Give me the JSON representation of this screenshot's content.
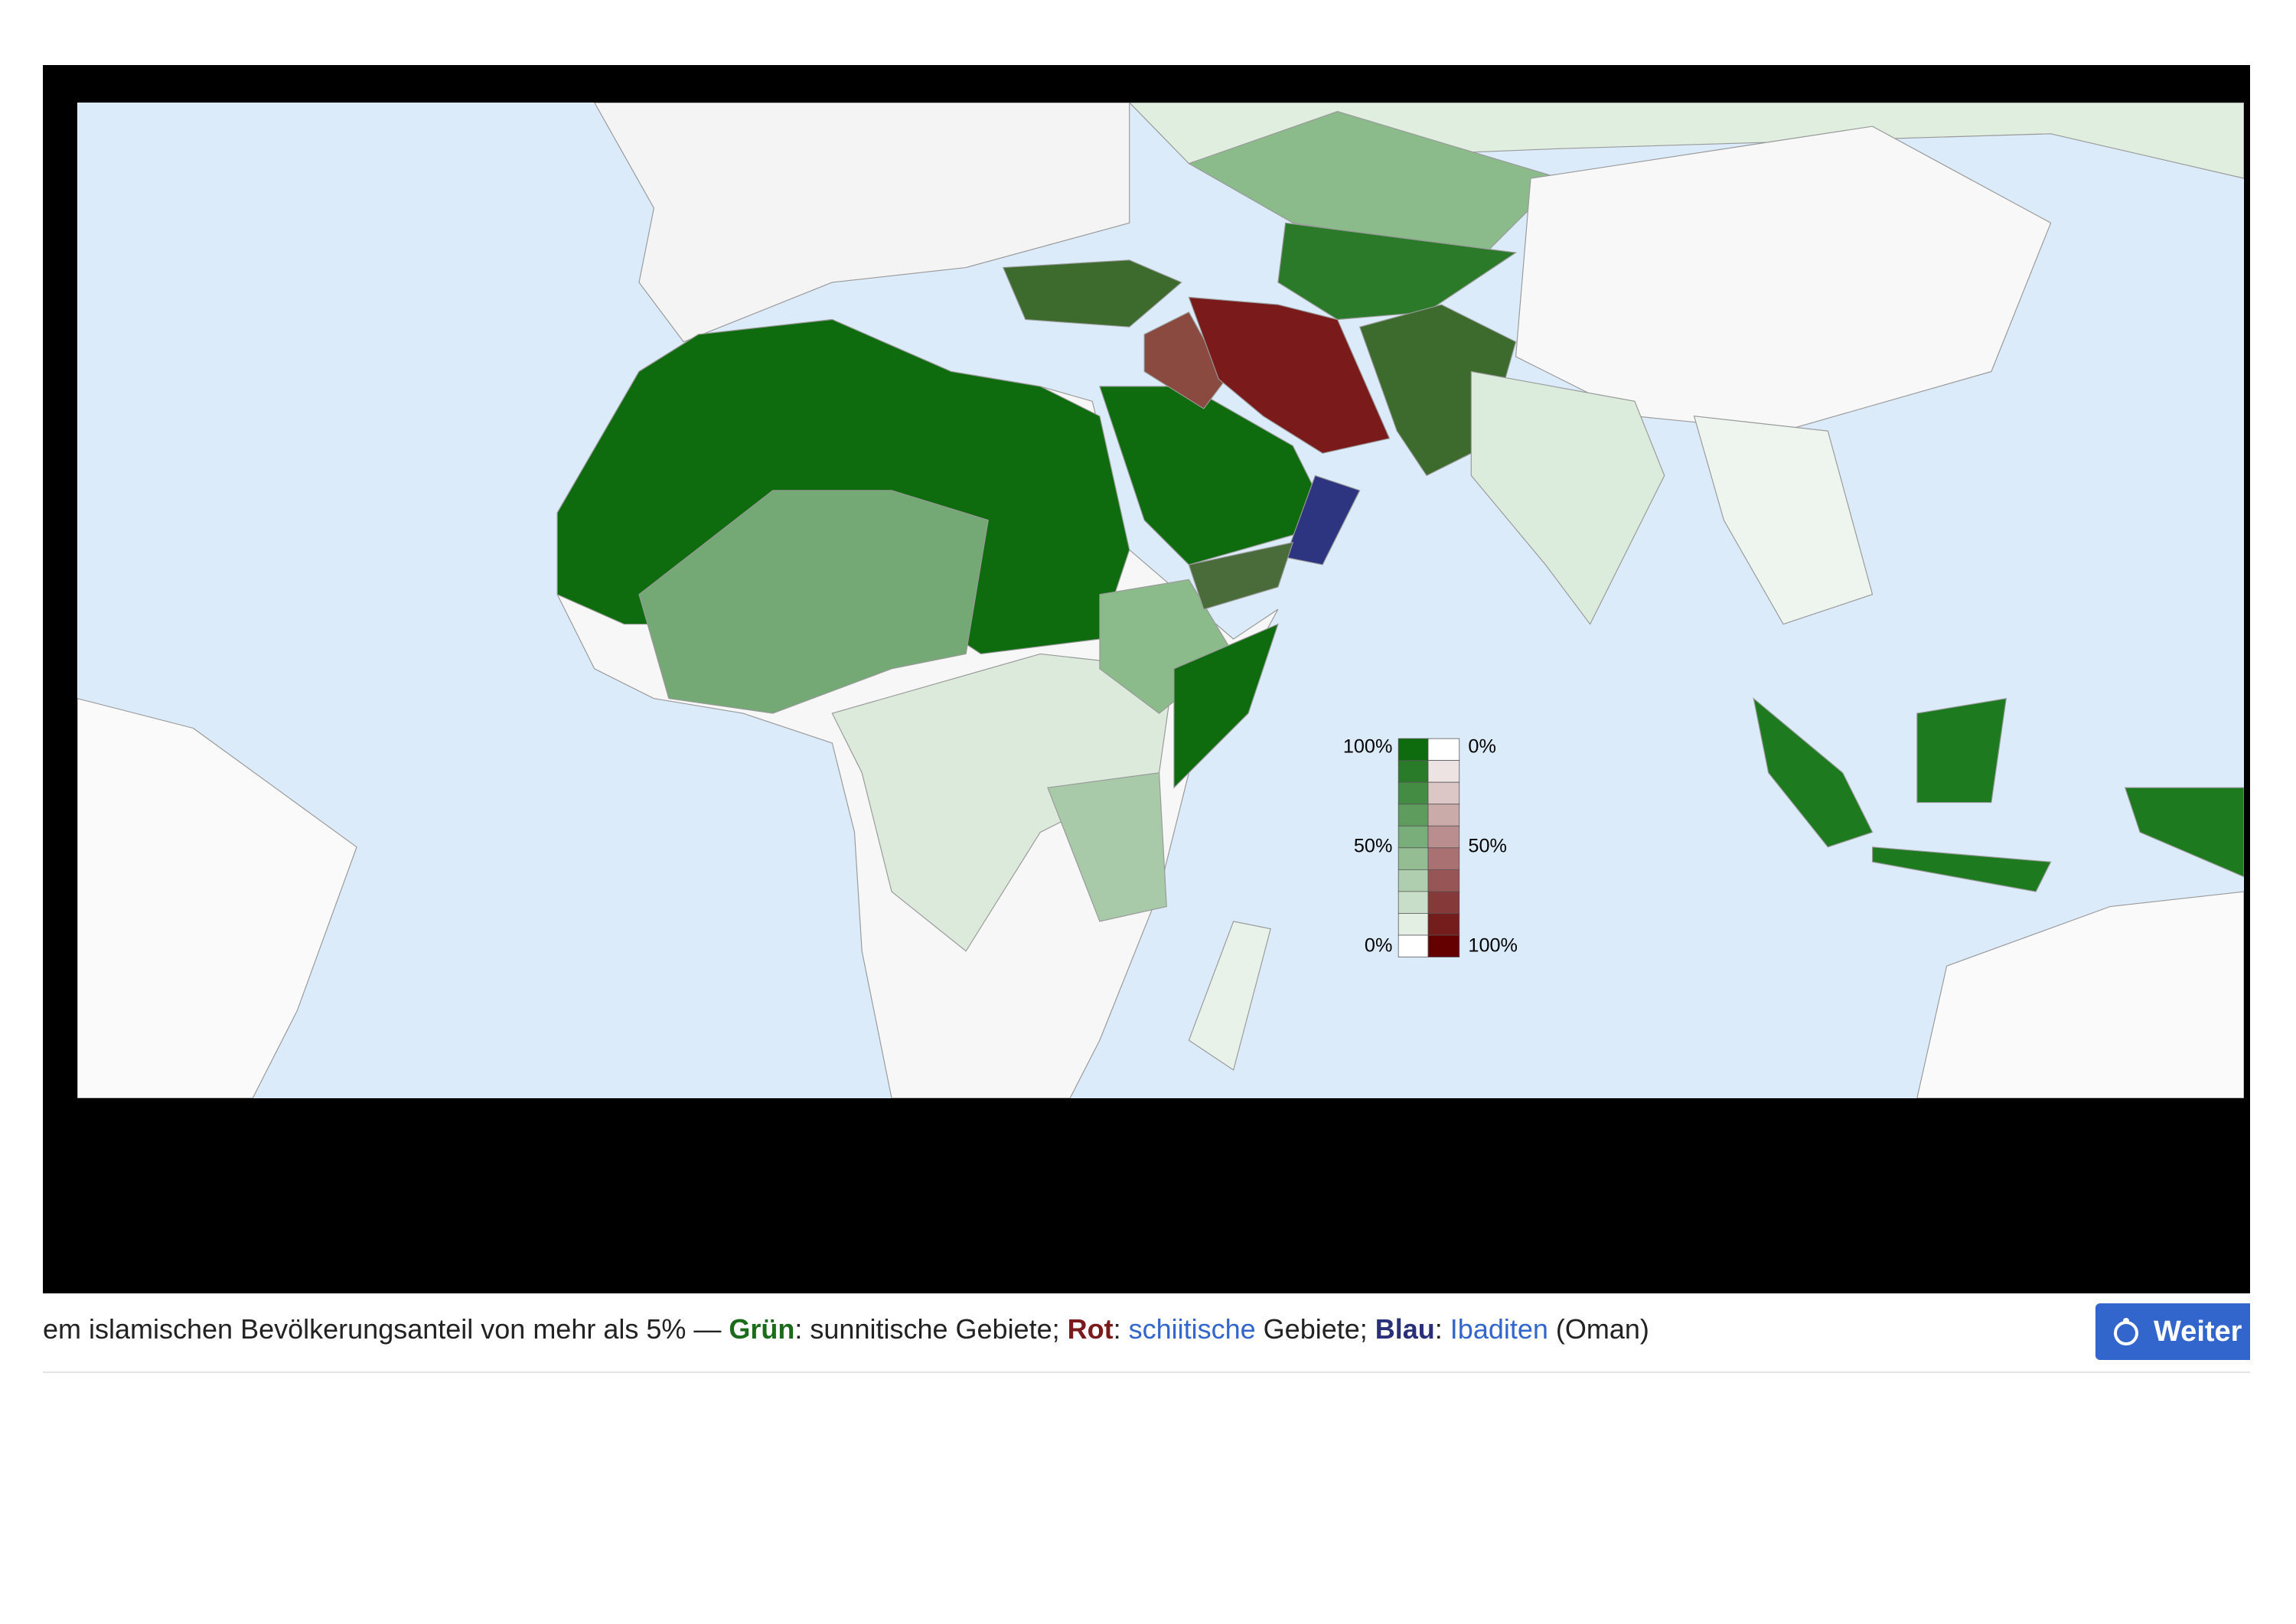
{
  "legend": {
    "sunni_labels": [
      "100%",
      "50%",
      "0%"
    ],
    "shia_labels": [
      "0%",
      "50%",
      "100%"
    ]
  },
  "caption": {
    "lead": "em islamischen Bevölkerungsanteil von mehr als 5% — ",
    "green": "Grün",
    "green_text": ": sunnitische Gebiete; ",
    "red": "Rot",
    "red_sep": ": ",
    "shia_link": "schiitische",
    "red_text": " Gebiete; ",
    "blue": "Blau",
    "blue_sep": ": ",
    "ibadi_link": "Ibaditen",
    "blue_text": " (Oman)"
  },
  "button": {
    "label": "Weiter"
  }
}
